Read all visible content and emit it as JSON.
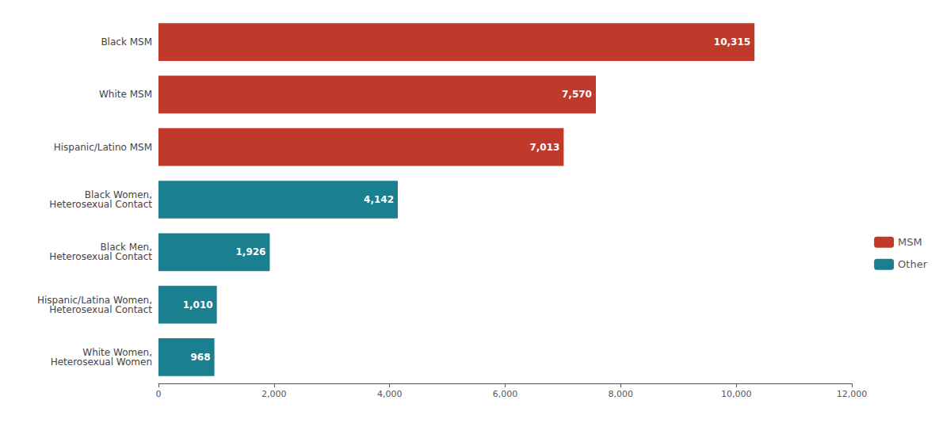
{
  "chart_data": {
    "type": "bar",
    "orientation": "horizontal",
    "categories": [
      "White Women,\nHeterosexual Women",
      "Hispanic/Latina Women,\nHeterosexual Contact",
      "Black Men,\nHeterosexual Contact",
      "Black Women,\nHeterosexual Contact",
      "Hispanic/Latino MSM",
      "White MSM",
      "Black MSM"
    ],
    "series": [
      {
        "name": "MSM",
        "color": "#c0392b",
        "values": [
          null,
          null,
          null,
          null,
          7013,
          7570,
          10315
        ],
        "value_labels": [
          null,
          null,
          null,
          null,
          "7,013",
          "7,570",
          "10,315"
        ]
      },
      {
        "name": "Other",
        "color": "#1a7f8e",
        "values": [
          968,
          1010,
          1926,
          4142,
          null,
          null,
          null
        ],
        "value_labels": [
          "968",
          "1,010",
          "1,926",
          "4,142",
          null,
          null,
          null
        ]
      }
    ],
    "data_labels": true,
    "xlim": [
      0,
      12000
    ],
    "xticks": [
      0,
      {
        "value": 2000,
        "label": "2,000"
      },
      {
        "value": 4000,
        "label": "4,000"
      },
      {
        "value": 6000,
        "label": "6,000"
      },
      {
        "value": 8000,
        "label": "8,000"
      },
      {
        "value": 10000,
        "label": "10,000"
      },
      {
        "value": 12000,
        "label": "12,000"
      }
    ],
    "grid": false,
    "legend": "right"
  }
}
